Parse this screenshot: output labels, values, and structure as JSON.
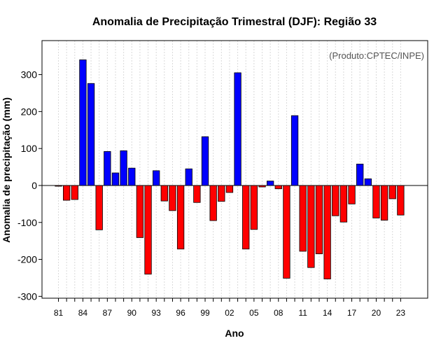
{
  "chart_data": {
    "type": "bar",
    "title": "Anomalia de Precipitação Trimestral (DJF): Região 33",
    "xlabel": "Ano",
    "ylabel": "Anomalia de precipitação (mm)",
    "credit": "(Produto:CPTEC/INPE)",
    "ylim": [
      -305,
      392
    ],
    "yticks": [
      300,
      200,
      100,
      0,
      -100,
      -200,
      -300
    ],
    "xtick_labels": [
      "81",
      "84",
      "87",
      "90",
      "93",
      "96",
      "99",
      "02",
      "05",
      "08",
      "11",
      "14",
      "17",
      "20",
      "23"
    ],
    "years": [
      1981,
      1982,
      1983,
      1984,
      1985,
      1986,
      1987,
      1988,
      1989,
      1990,
      1991,
      1992,
      1993,
      1994,
      1995,
      1996,
      1997,
      1998,
      1999,
      2000,
      2001,
      2002,
      2003,
      2004,
      2005,
      2006,
      2007,
      2008,
      2009,
      2010,
      2011,
      2012,
      2013,
      2014,
      2015,
      2016,
      2017,
      2018,
      2019,
      2020,
      2021,
      2022,
      2023
    ],
    "values": [
      -2,
      -40,
      -38,
      340,
      276,
      -120,
      92,
      34,
      94,
      47,
      -141,
      -240,
      40,
      -42,
      -68,
      -172,
      45,
      -46,
      132,
      -95,
      -43,
      -19,
      305,
      -172,
      -119,
      -4,
      12,
      -9,
      -251,
      189,
      -178,
      -222,
      -185,
      -253,
      -82,
      -99,
      -50,
      58,
      18,
      -88,
      -94,
      -36,
      -80
    ],
    "colors": {
      "positive": "#0000ff",
      "negative": "#ff0000",
      "grid": "#d9d9d9"
    }
  }
}
